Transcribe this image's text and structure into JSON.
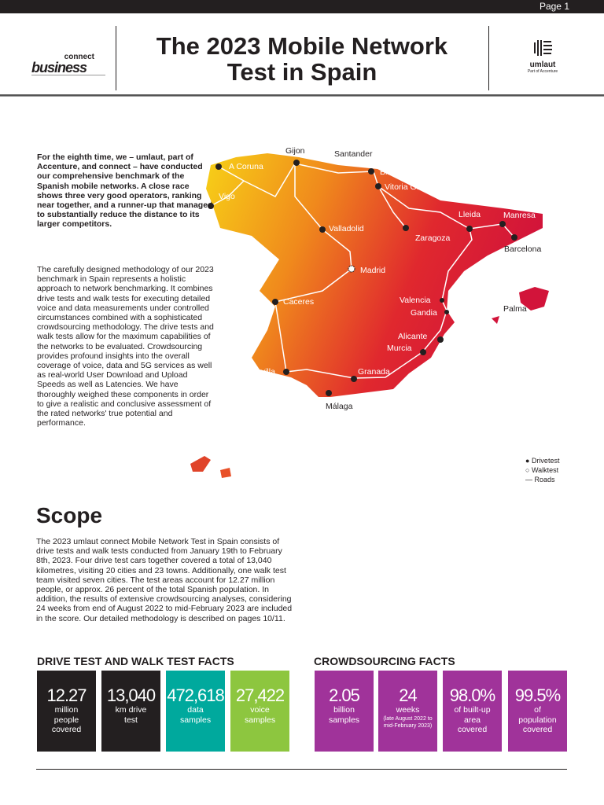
{
  "header": {
    "page": "Page 1",
    "title_line1": "The 2023 Mobile Network",
    "title_line2": "Test in Spain",
    "logo_left_top": "connect",
    "logo_left_bottom": "business",
    "logo_right_name": "umlaut",
    "logo_right_sub": "Part of Accenture"
  },
  "intro": {
    "bold": "For the eighth time, we – umlaut, part of Accenture, and connect – have conducted our comprehensive benchmark of the Spanish mobile networks. A close race shows three very good operators, ranking near together, and a runner-up that managed to substantially reduce the distance to its larger competitors.",
    "body": "The carefully designed methodology of our 2023 benchmark in Spain represents a holistic approach to network benchmarking. It combines drive tests and walk tests for executing detailed voice and data measurements under controlled circumstances combined with a sophisticated crowdsourcing methodology. The drive tests and walk tests allow for the maximum capabilities of the networks to be evaluated. Crowdsourcing provides profound insights into the overall coverage of voice, data and 5G services as well as real-world User Download and Upload Speeds as well as Latencies. We have thoroughly weighed these components in order to give a realistic and conclusive assessment of the rated networks' true potential and performance."
  },
  "map": {
    "cities": [
      "Gijon",
      "Santander",
      "A Coruna",
      "Bilbao",
      "Vitoria Gasteiz",
      "Vigo",
      "Valladolid",
      "Lleida",
      "Manresa",
      "Zaragoza",
      "Barcelona",
      "Madrid",
      "Caceres",
      "Valencia",
      "Gandia",
      "Palma",
      "Alicante",
      "Murcia",
      "Sevilla",
      "Granada",
      "Málaga"
    ],
    "legend": {
      "drivetest": "Drivetest",
      "walktest": "Walktest",
      "roads": "Roads"
    }
  },
  "scope": {
    "heading": "Scope",
    "body": "The 2023 umlaut connect Mobile Network Test in Spain consists of drive tests and walk tests conducted from January 19th to February 8th, 2023. Four drive test cars together covered a total of 13,040 kilometres, visiting 20 cities and 23 towns. Additionally, one walk test team visited seven cities. The test areas account for 12.27 million people, or approx. 26 percent of the total Spanish population. In addition, the results of extensive crowdsourcing analyses, considering 24 weeks from end of August 2022 to mid-February 2023 are included in the score. Our detailed methodology is described on pages 10/11."
  },
  "drive_facts": {
    "heading": "DRIVE TEST AND WALK TEST FACTS",
    "items": [
      {
        "value": "12.27",
        "label": "million people covered",
        "color": "#231f20"
      },
      {
        "value": "13,040",
        "label": "km drive test",
        "color": "#231f20"
      },
      {
        "value": "472,618",
        "label": "data samples",
        "color": "#00a99d"
      },
      {
        "value": "27,422",
        "label": "voice samples",
        "color": "#8dc63f"
      }
    ]
  },
  "crowd_facts": {
    "heading": "CROWDSOURCING FACTS",
    "items": [
      {
        "value": "2.05",
        "label": "billion samples",
        "color": "#a0339a"
      },
      {
        "value": "24",
        "label": "weeks",
        "note": "(late August 2022 to mid-February 2023)",
        "color": "#a0339a"
      },
      {
        "value": "98.0%",
        "label": "of built-up area covered",
        "color": "#a0339a"
      },
      {
        "value": "99.5%",
        "label": "of population covered",
        "color": "#a0339a"
      }
    ]
  }
}
